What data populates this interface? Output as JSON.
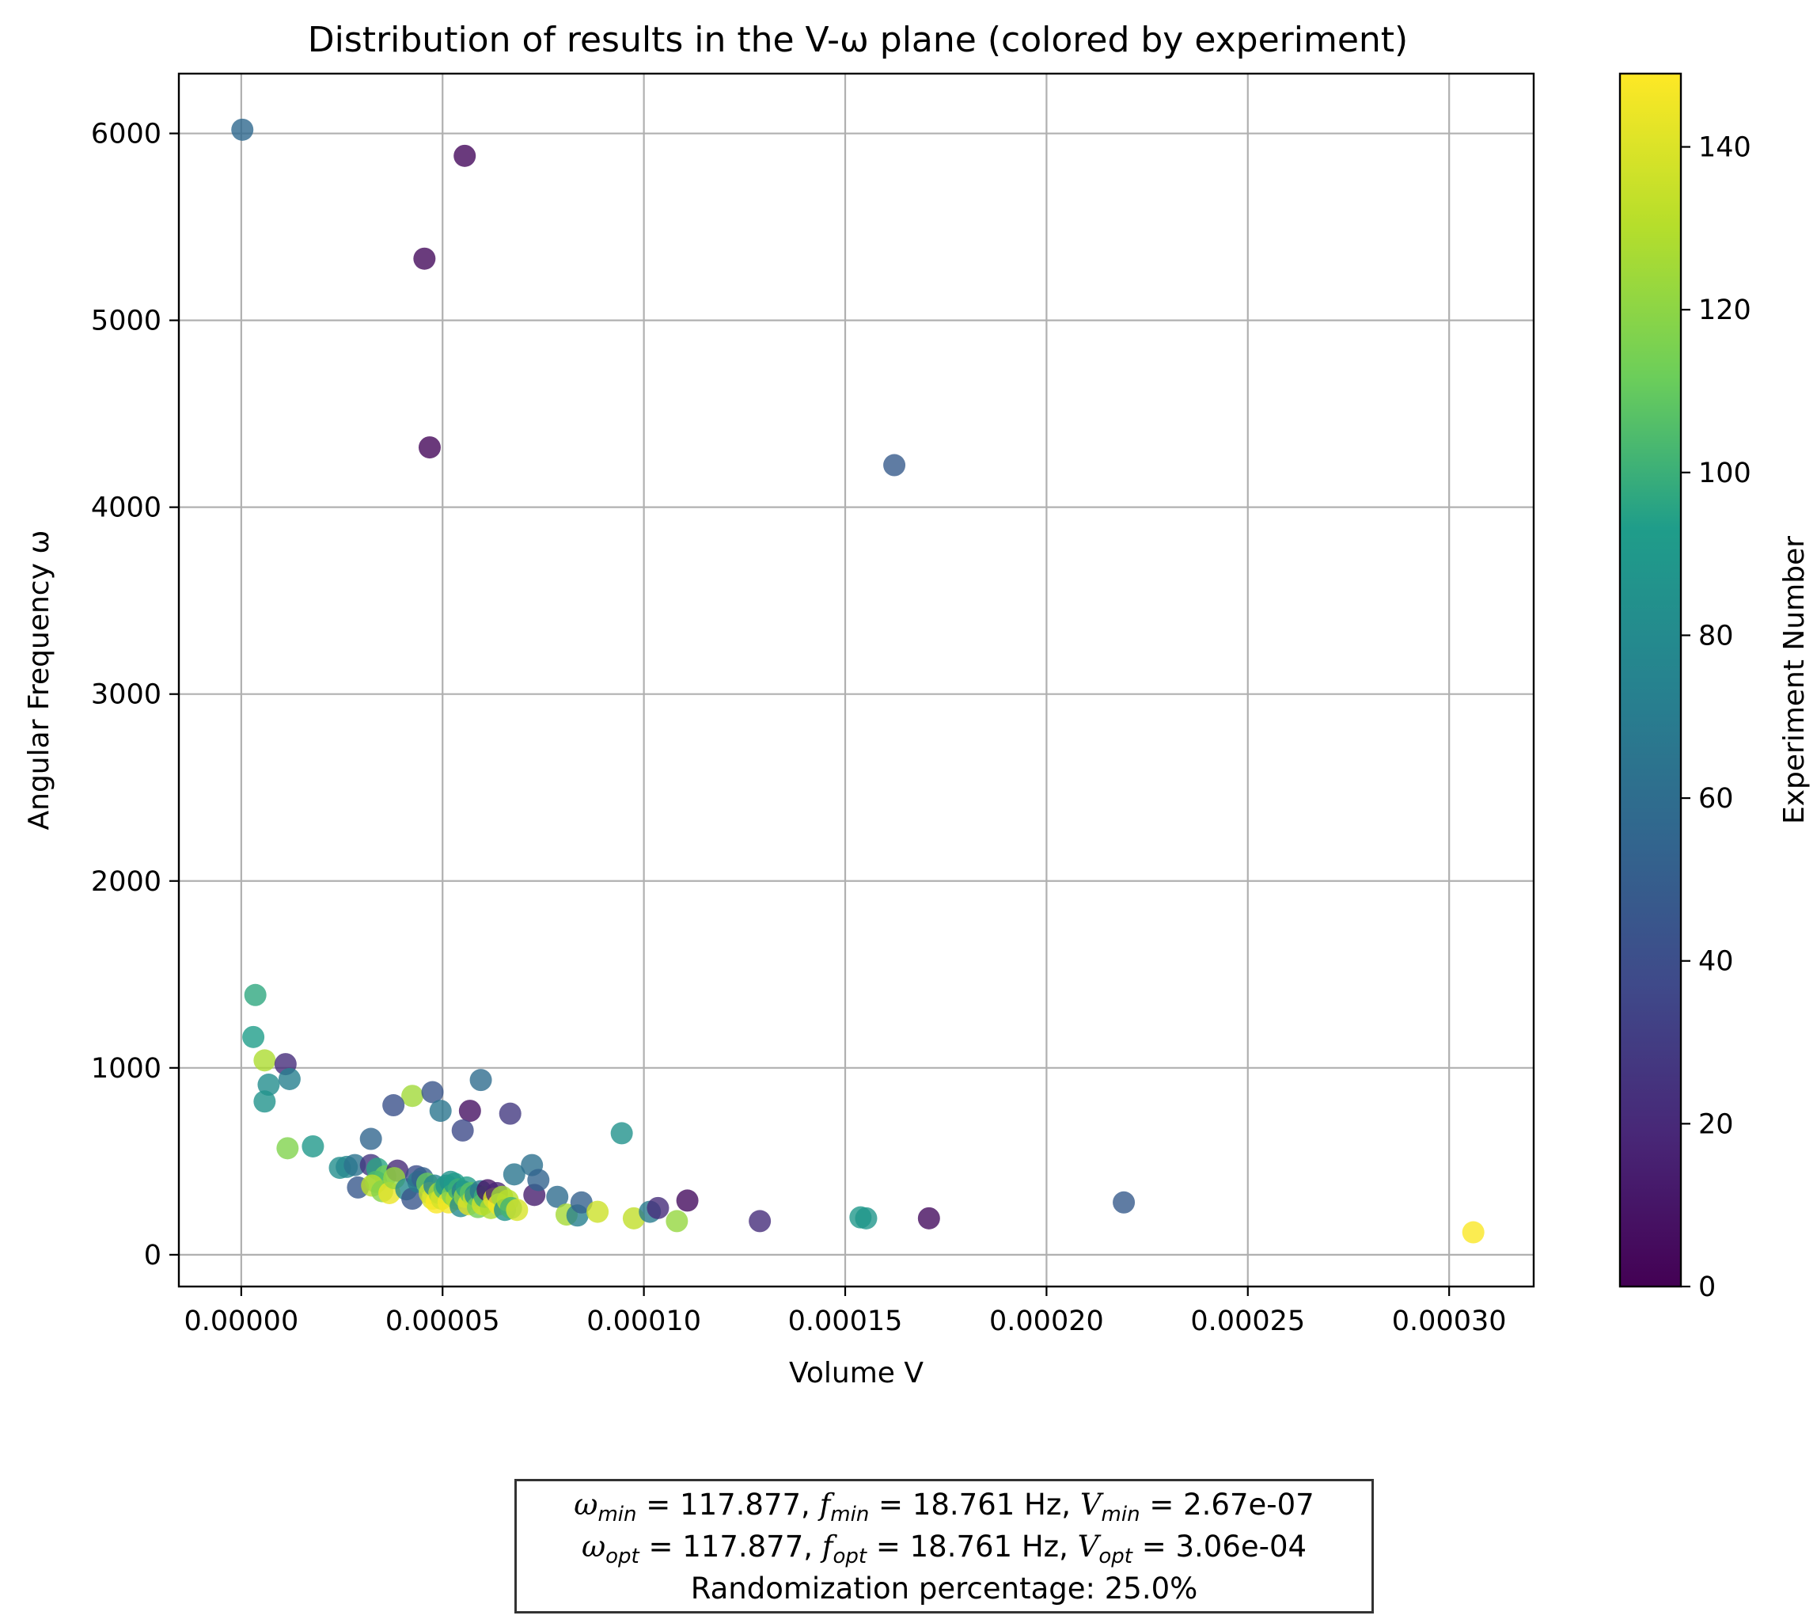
{
  "chart_data": {
    "type": "scatter",
    "title": "Distribution of results in the V-ω plane (colored by experiment)",
    "xlabel": "Volume V",
    "ylabel": "Angular Frequency ω",
    "xlim": [
      -1.55e-05,
      0.000321
    ],
    "ylim": [
      -170,
      6320
    ],
    "xticks": [
      0,
      5e-05,
      0.0001,
      0.00015,
      0.0002,
      0.00025,
      0.0003
    ],
    "xtick_labels": [
      "0.00000",
      "0.00005",
      "0.00010",
      "0.00015",
      "0.00020",
      "0.00025",
      "0.00030"
    ],
    "yticks": [
      0,
      1000,
      2000,
      3000,
      4000,
      5000,
      6000
    ],
    "ytick_labels": [
      "0",
      "1000",
      "2000",
      "3000",
      "4000",
      "5000",
      "6000"
    ],
    "grid": true,
    "colorbar": {
      "label": "Experiment Number",
      "range": [
        0,
        149
      ],
      "ticks": [
        0,
        20,
        40,
        60,
        80,
        100,
        120,
        140
      ],
      "tick_labels": [
        "0",
        "20",
        "40",
        "60",
        "80",
        "100",
        "120",
        "140"
      ],
      "colormap": "viridis",
      "colors": [
        "#440154",
        "#482777",
        "#3f4a8a",
        "#31678e",
        "#26838f",
        "#1f9d8a",
        "#6cce5a",
        "#b6de2b",
        "#fee825"
      ]
    },
    "points": [
      {
        "x": 2.7e-07,
        "y": 6020,
        "c": 57
      },
      {
        "x": 5.55e-05,
        "y": 5880,
        "c": 4
      },
      {
        "x": 4.55e-05,
        "y": 5330,
        "c": 5
      },
      {
        "x": 4.68e-05,
        "y": 4320,
        "c": 3
      },
      {
        "x": 0.0001622,
        "y": 4225,
        "c": 48
      },
      {
        "x": 3.5e-06,
        "y": 1390,
        "c": 97
      },
      {
        "x": 3e-06,
        "y": 1165,
        "c": 93
      },
      {
        "x": 5.8e-06,
        "y": 1040,
        "c": 128
      },
      {
        "x": 1.1e-05,
        "y": 1020,
        "c": 22
      },
      {
        "x": 6.8e-06,
        "y": 910,
        "c": 82
      },
      {
        "x": 1.2e-05,
        "y": 940,
        "c": 72
      },
      {
        "x": 5.8e-06,
        "y": 820,
        "c": 86
      },
      {
        "x": 1.15e-05,
        "y": 570,
        "c": 117
      },
      {
        "x": 1.78e-05,
        "y": 580,
        "c": 90
      },
      {
        "x": 4.25e-05,
        "y": 850,
        "c": 125
      },
      {
        "x": 4.75e-05,
        "y": 870,
        "c": 44
      },
      {
        "x": 3.78e-05,
        "y": 800,
        "c": 42
      },
      {
        "x": 4.95e-05,
        "y": 770,
        "c": 66
      },
      {
        "x": 5.68e-05,
        "y": 770,
        "c": 8
      },
      {
        "x": 5.95e-05,
        "y": 935,
        "c": 60
      },
      {
        "x": 6.68e-05,
        "y": 755,
        "c": 28
      },
      {
        "x": 5.5e-05,
        "y": 665,
        "c": 38
      },
      {
        "x": 9.45e-05,
        "y": 650,
        "c": 85
      },
      {
        "x": 3.22e-05,
        "y": 620,
        "c": 55
      },
      {
        "x": 2.45e-05,
        "y": 465,
        "c": 83
      },
      {
        "x": 2.62e-05,
        "y": 470,
        "c": 78
      },
      {
        "x": 2.82e-05,
        "y": 480,
        "c": 64
      },
      {
        "x": 3.22e-05,
        "y": 480,
        "c": 26
      },
      {
        "x": 3.38e-05,
        "y": 460,
        "c": 96
      },
      {
        "x": 3.58e-05,
        "y": 420,
        "c": 112
      },
      {
        "x": 3.88e-05,
        "y": 450,
        "c": 20
      },
      {
        "x": 2.9e-05,
        "y": 360,
        "c": 47
      },
      {
        "x": 3.35e-05,
        "y": 390,
        "c": 104
      },
      {
        "x": 3.25e-05,
        "y": 370,
        "c": 132
      },
      {
        "x": 3.5e-05,
        "y": 340,
        "c": 118
      },
      {
        "x": 3.68e-05,
        "y": 330,
        "c": 144
      },
      {
        "x": 3.8e-05,
        "y": 410,
        "c": 122
      },
      {
        "x": 4.1e-05,
        "y": 350,
        "c": 80
      },
      {
        "x": 4.25e-05,
        "y": 300,
        "c": 45
      },
      {
        "x": 4.35e-05,
        "y": 420,
        "c": 40
      },
      {
        "x": 4.4e-05,
        "y": 390,
        "c": 70
      },
      {
        "x": 4.5e-05,
        "y": 410,
        "c": 52
      },
      {
        "x": 4.62e-05,
        "y": 380,
        "c": 110
      },
      {
        "x": 4.68e-05,
        "y": 330,
        "c": 135
      },
      {
        "x": 4.75e-05,
        "y": 300,
        "c": 140
      },
      {
        "x": 4.8e-05,
        "y": 370,
        "c": 75
      },
      {
        "x": 4.85e-05,
        "y": 280,
        "c": 148
      },
      {
        "x": 4.92e-05,
        "y": 330,
        "c": 127
      },
      {
        "x": 4.98e-05,
        "y": 300,
        "c": 138
      },
      {
        "x": 5.05e-05,
        "y": 355,
        "c": 103
      },
      {
        "x": 5.1e-05,
        "y": 370,
        "c": 88
      },
      {
        "x": 5.15e-05,
        "y": 280,
        "c": 146
      },
      {
        "x": 5.2e-05,
        "y": 390,
        "c": 86
      },
      {
        "x": 5.25e-05,
        "y": 320,
        "c": 115
      },
      {
        "x": 5.3e-05,
        "y": 380,
        "c": 92
      },
      {
        "x": 5.35e-05,
        "y": 300,
        "c": 130
      },
      {
        "x": 5.4e-05,
        "y": 350,
        "c": 100
      },
      {
        "x": 5.45e-05,
        "y": 260,
        "c": 80
      },
      {
        "x": 5.5e-05,
        "y": 340,
        "c": 73
      },
      {
        "x": 5.55e-05,
        "y": 310,
        "c": 120
      },
      {
        "x": 5.6e-05,
        "y": 360,
        "c": 94
      },
      {
        "x": 5.65e-05,
        "y": 270,
        "c": 142
      },
      {
        "x": 5.7e-05,
        "y": 330,
        "c": 108
      },
      {
        "x": 5.78e-05,
        "y": 300,
        "c": 134
      },
      {
        "x": 5.82e-05,
        "y": 320,
        "c": 84
      },
      {
        "x": 5.88e-05,
        "y": 255,
        "c": 113
      },
      {
        "x": 5.95e-05,
        "y": 340,
        "c": 68
      },
      {
        "x": 6e-05,
        "y": 270,
        "c": 137
      },
      {
        "x": 6.05e-05,
        "y": 310,
        "c": 100
      },
      {
        "x": 6.12e-05,
        "y": 345,
        "c": 10
      },
      {
        "x": 6.2e-05,
        "y": 250,
        "c": 128
      },
      {
        "x": 6.28e-05,
        "y": 300,
        "c": 141
      },
      {
        "x": 6.35e-05,
        "y": 330,
        "c": 18
      },
      {
        "x": 6.4e-05,
        "y": 270,
        "c": 145
      },
      {
        "x": 6.48e-05,
        "y": 310,
        "c": 125
      },
      {
        "x": 6.55e-05,
        "y": 240,
        "c": 86
      },
      {
        "x": 6.62e-05,
        "y": 290,
        "c": 131
      },
      {
        "x": 6.7e-05,
        "y": 250,
        "c": 102
      },
      {
        "x": 6.78e-05,
        "y": 430,
        "c": 66
      },
      {
        "x": 6.85e-05,
        "y": 240,
        "c": 139
      },
      {
        "x": 7.22e-05,
        "y": 480,
        "c": 62
      },
      {
        "x": 7.28e-05,
        "y": 320,
        "c": 14
      },
      {
        "x": 7.38e-05,
        "y": 400,
        "c": 54
      },
      {
        "x": 7.85e-05,
        "y": 310,
        "c": 60
      },
      {
        "x": 8.08e-05,
        "y": 215,
        "c": 126
      },
      {
        "x": 8.35e-05,
        "y": 210,
        "c": 72
      },
      {
        "x": 8.45e-05,
        "y": 280,
        "c": 52
      },
      {
        "x": 8.85e-05,
        "y": 230,
        "c": 136
      },
      {
        "x": 9.75e-05,
        "y": 195,
        "c": 133
      },
      {
        "x": 0.0001015,
        "y": 230,
        "c": 70
      },
      {
        "x": 0.0001035,
        "y": 250,
        "c": 22
      },
      {
        "x": 0.0001108,
        "y": 290,
        "c": 6
      },
      {
        "x": 0.0001082,
        "y": 180,
        "c": 122
      },
      {
        "x": 0.0001288,
        "y": 180,
        "c": 22
      },
      {
        "x": 0.0001538,
        "y": 200,
        "c": 90
      },
      {
        "x": 0.0001552,
        "y": 195,
        "c": 88
      },
      {
        "x": 0.0001708,
        "y": 195,
        "c": 6
      },
      {
        "x": 0.0002192,
        "y": 280,
        "c": 48
      },
      {
        "x": 0.000306,
        "y": 120,
        "c": 148
      }
    ]
  },
  "info": {
    "line1": {
      "omega_sym": "ω",
      "min_sub": "min",
      "omega_val": " = 117.877, ",
      "f_sym": "f",
      "f_val": " = 18.761 Hz, ",
      "v_sym": "V",
      "v_val": " = 2.67e-07"
    },
    "line2": {
      "omega_sym": "ω",
      "opt_sub": "opt",
      "omega_val": " = 117.877, ",
      "f_sym": "f",
      "f_val": " = 18.761 Hz, ",
      "v_sym": "V",
      "v_val": " = 3.06e-04"
    },
    "line3": "Randomization percentage: 25.0%"
  }
}
